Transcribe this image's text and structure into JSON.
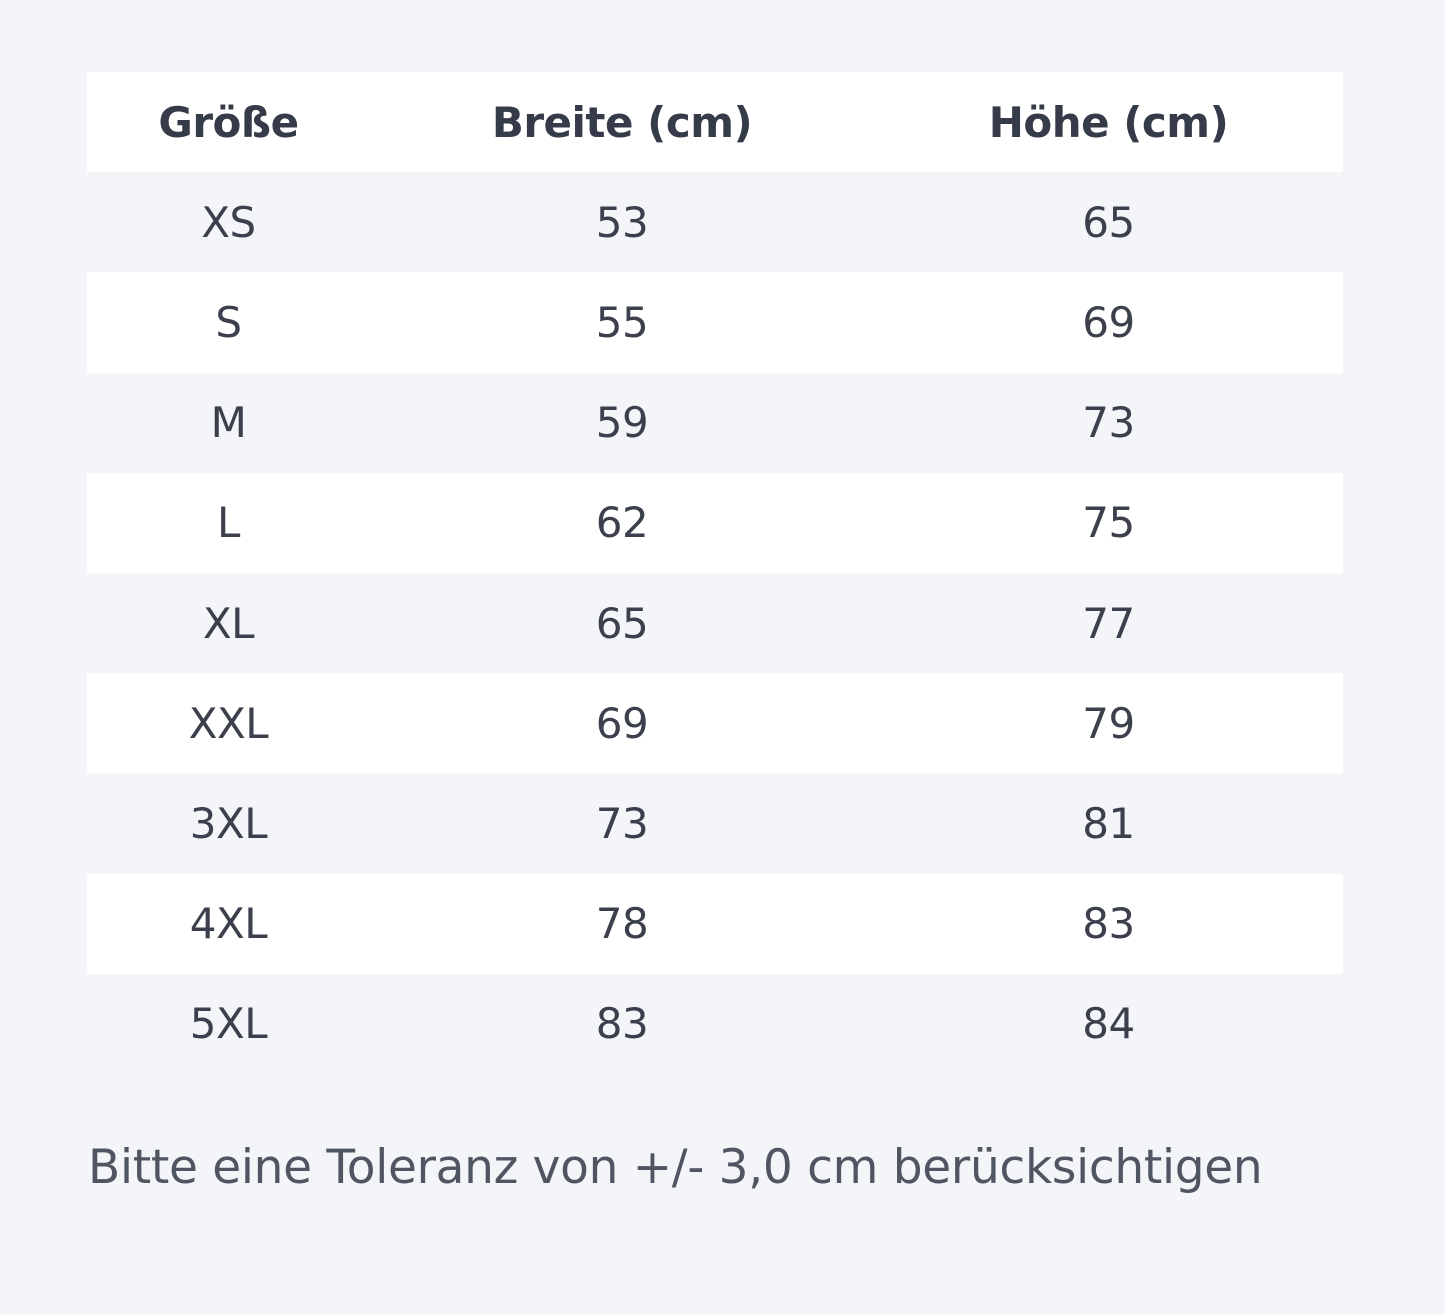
{
  "table": {
    "headers": [
      "Größe",
      "Breite (cm)",
      "Höhe (cm)"
    ],
    "rows": [
      [
        "XS",
        "53",
        "65"
      ],
      [
        "S",
        "55",
        "69"
      ],
      [
        "M",
        "59",
        "73"
      ],
      [
        "L",
        "62",
        "75"
      ],
      [
        "XL",
        "65",
        "77"
      ],
      [
        "XXL",
        "69",
        "79"
      ],
      [
        "3XL",
        "73",
        "81"
      ],
      [
        "4XL",
        "78",
        "83"
      ],
      [
        "5XL",
        "83",
        "84"
      ]
    ]
  },
  "note": "Bitte eine Toleranz von +/- 3,0 cm berücksichtigen",
  "colors": {
    "background": "#f3f5f9",
    "row_alt": "#ffffff",
    "text": "#3b404c"
  }
}
